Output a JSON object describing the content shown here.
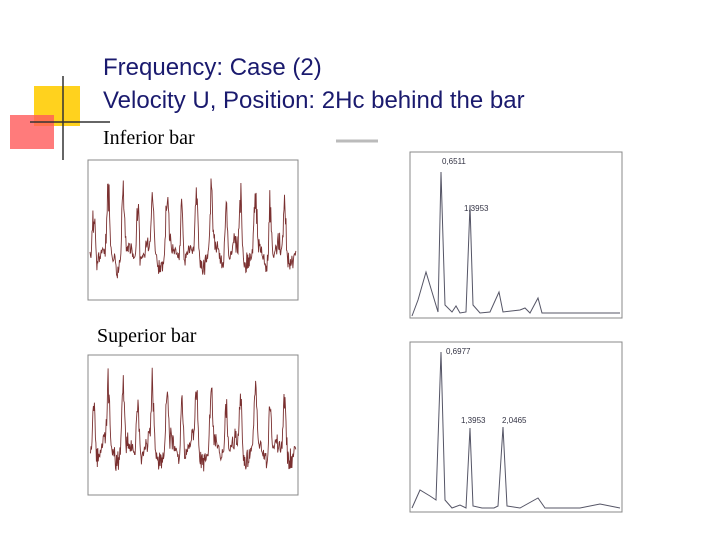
{
  "slide": {
    "title_line1": "Frequency: Case (2)",
    "title_line2": "Velocity U, Position: 2Hc behind the bar",
    "label_inferior": "Inferior bar",
    "label_superior": "Superior bar",
    "inferior_spectrum_peaks": [
      "0,6511",
      "1,3953"
    ],
    "superior_spectrum_peaks": [
      "0,6977",
      "1,3953",
      "2,0465"
    ]
  }
}
